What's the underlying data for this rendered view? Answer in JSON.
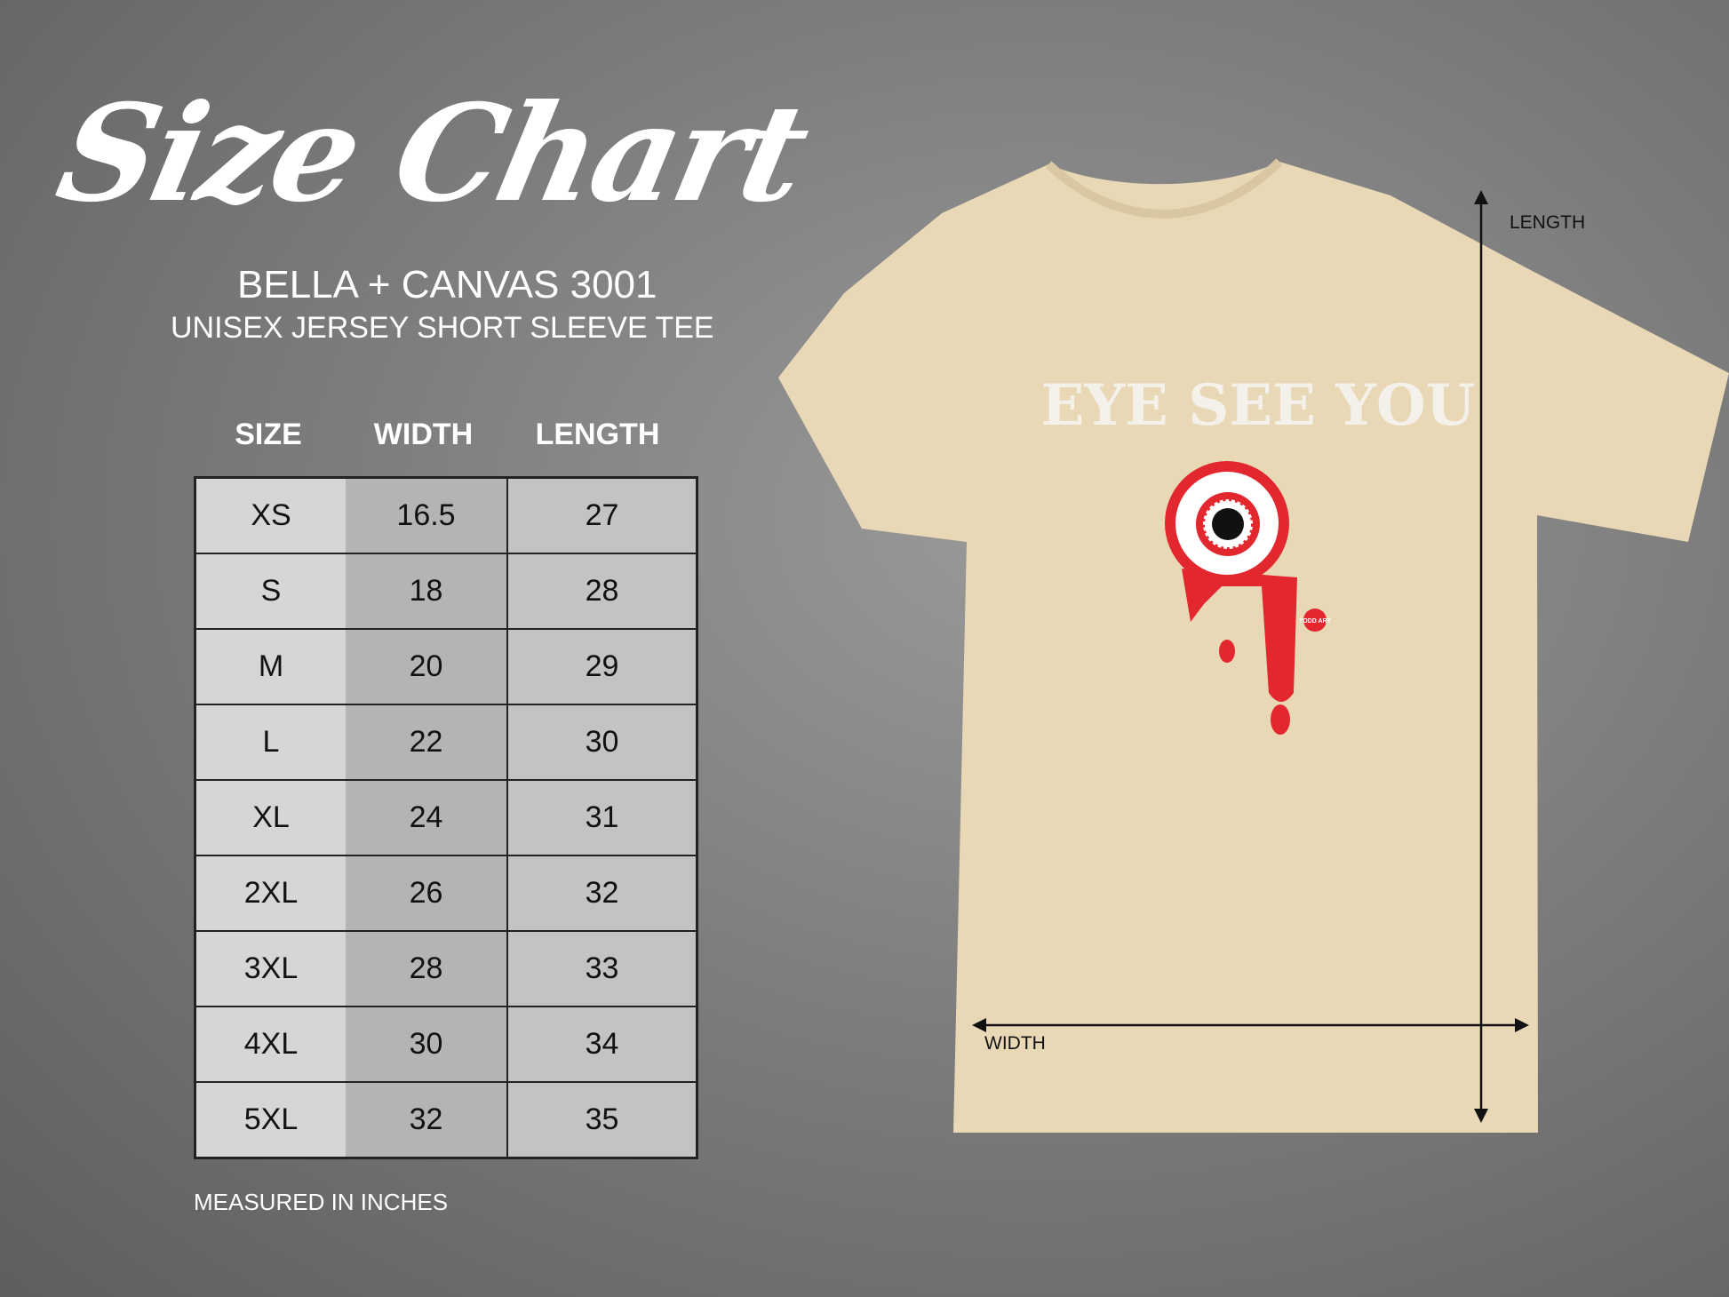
{
  "title": "Size Chart",
  "brand": "BELLA + CANVAS 3001",
  "subtitle": "UNISEX JERSEY SHORT SLEEVE TEE",
  "table": {
    "headers": [
      "SIZE",
      "WIDTH",
      "LENGTH"
    ],
    "rows": [
      [
        "XS",
        "16.5",
        "27"
      ],
      [
        "S",
        "18",
        "28"
      ],
      [
        "M",
        "20",
        "29"
      ],
      [
        "L",
        "22",
        "30"
      ],
      [
        "XL",
        "24",
        "31"
      ],
      [
        "2XL",
        "26",
        "32"
      ],
      [
        "3XL",
        "28",
        "33"
      ],
      [
        "4XL",
        "30",
        "34"
      ],
      [
        "5XL",
        "32",
        "35"
      ]
    ]
  },
  "note": "MEASURED IN INCHES",
  "shirt": {
    "color": "#e9d8b6",
    "print_text": "EYE SEE YOU",
    "logo_text": "TODD ART",
    "length_label": "LENGTH",
    "width_label": "WIDTH"
  }
}
